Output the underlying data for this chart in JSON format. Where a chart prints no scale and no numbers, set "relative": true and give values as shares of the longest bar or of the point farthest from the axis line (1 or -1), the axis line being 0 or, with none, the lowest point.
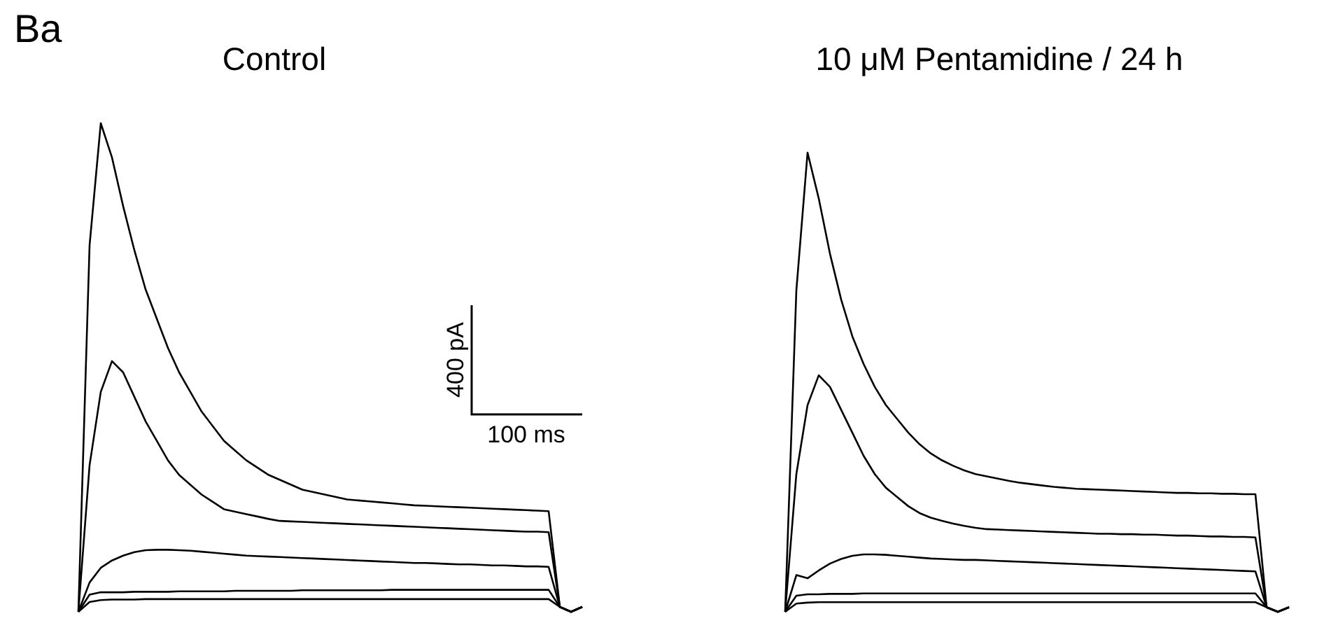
{
  "chart_data": [
    {
      "type": "line",
      "title": "Control",
      "relative": true,
      "annotations": [
        "Ba",
        "400 pA",
        "100 ms"
      ],
      "categories": [
        null,
        null,
        null,
        null,
        null,
        null,
        null,
        null,
        null,
        null,
        null,
        null,
        null,
        null,
        null,
        null,
        null,
        null,
        null,
        null,
        null,
        null,
        null,
        null,
        null,
        null,
        null,
        null,
        null,
        null,
        null,
        null,
        null,
        null,
        null,
        null,
        null,
        null,
        null,
        null,
        null,
        null,
        null,
        null,
        null,
        null
      ],
      "series": [
        {
          "color": "#000000",
          "values": [
            0,
            0.75,
            1.0,
            0.93,
            0.83,
            0.74,
            0.66,
            0.6,
            0.54,
            0.49,
            0.45,
            0.41,
            0.38,
            0.35,
            0.33,
            0.31,
            0.295,
            0.28,
            0.27,
            0.26,
            0.25,
            0.245,
            0.24,
            0.235,
            0.23,
            0.228,
            0.226,
            0.224,
            0.222,
            0.22,
            0.218,
            0.217,
            0.216,
            0.215,
            0.214,
            0.213,
            0.212,
            0.211,
            0.21,
            0.209,
            0.208,
            0.207,
            0.206,
            0.01,
            0,
            0.01
          ]
        },
        {
          "color": "#000000",
          "values": [
            0,
            0.3,
            0.45,
            0.513,
            0.49,
            0.44,
            0.39,
            0.35,
            0.31,
            0.28,
            0.26,
            0.24,
            0.225,
            0.21,
            0.205,
            0.2,
            0.195,
            0.19,
            0.186,
            0.185,
            0.184,
            0.183,
            0.182,
            0.181,
            0.18,
            0.179,
            0.178,
            0.177,
            0.176,
            0.175,
            0.174,
            0.173,
            0.172,
            0.171,
            0.17,
            0.169,
            0.168,
            0.167,
            0.166,
            0.165,
            0.164,
            0.164,
            0.163,
            0.01,
            0,
            0.01
          ]
        },
        {
          "color": "#000000",
          "values": [
            0,
            0.06,
            0.09,
            0.105,
            0.115,
            0.122,
            0.126,
            0.127,
            0.127,
            0.126,
            0.125,
            0.123,
            0.121,
            0.119,
            0.117,
            0.115,
            0.114,
            0.113,
            0.112,
            0.111,
            0.11,
            0.109,
            0.108,
            0.107,
            0.106,
            0.105,
            0.104,
            0.103,
            0.102,
            0.101,
            0.1,
            0.1,
            0.099,
            0.098,
            0.097,
            0.097,
            0.096,
            0.095,
            0.095,
            0.094,
            0.093,
            0.093,
            0.092,
            0.01,
            0,
            0.01
          ]
        },
        {
          "color": "#000000",
          "values": [
            0,
            0.035,
            0.04,
            0.04,
            0.04,
            0.041,
            0.041,
            0.041,
            0.041,
            0.042,
            0.042,
            0.042,
            0.042,
            0.042,
            0.043,
            0.043,
            0.043,
            0.043,
            0.043,
            0.043,
            0.044,
            0.044,
            0.044,
            0.044,
            0.044,
            0.044,
            0.044,
            0.044,
            0.045,
            0.045,
            0.045,
            0.045,
            0.045,
            0.045,
            0.045,
            0.045,
            0.045,
            0.045,
            0.045,
            0.045,
            0.045,
            0.045,
            0.045,
            0.01,
            0,
            0.01
          ]
        },
        {
          "color": "#000000",
          "values": [
            0,
            0.02,
            0.024,
            0.025,
            0.025,
            0.025,
            0.026,
            0.026,
            0.026,
            0.026,
            0.026,
            0.026,
            0.026,
            0.026,
            0.026,
            0.026,
            0.026,
            0.026,
            0.026,
            0.026,
            0.026,
            0.026,
            0.026,
            0.026,
            0.026,
            0.026,
            0.026,
            0.026,
            0.026,
            0.026,
            0.026,
            0.026,
            0.026,
            0.026,
            0.026,
            0.026,
            0.026,
            0.026,
            0.026,
            0.026,
            0.026,
            0.026,
            0.026,
            0.01,
            0,
            0.01
          ]
        }
      ]
    },
    {
      "type": "line",
      "title": "10 μM Pentamidine / 24 h",
      "relative": true,
      "categories": [
        null,
        null,
        null,
        null,
        null,
        null,
        null,
        null,
        null,
        null,
        null,
        null,
        null,
        null,
        null,
        null,
        null,
        null,
        null,
        null,
        null,
        null,
        null,
        null,
        null,
        null,
        null,
        null,
        null,
        null,
        null,
        null,
        null,
        null,
        null,
        null,
        null,
        null,
        null,
        null,
        null,
        null,
        null,
        null,
        null,
        null
      ],
      "series": [
        {
          "color": "#000000",
          "values": [
            0,
            0.7,
            1.0,
            0.9,
            0.78,
            0.68,
            0.6,
            0.54,
            0.49,
            0.45,
            0.42,
            0.39,
            0.365,
            0.345,
            0.33,
            0.318,
            0.308,
            0.3,
            0.295,
            0.29,
            0.285,
            0.281,
            0.278,
            0.275,
            0.272,
            0.27,
            0.268,
            0.267,
            0.266,
            0.265,
            0.264,
            0.263,
            0.262,
            0.261,
            0.26,
            0.259,
            0.259,
            0.258,
            0.258,
            0.257,
            0.257,
            0.256,
            0.256,
            0.01,
            0,
            0.01
          ]
        },
        {
          "color": "#000000",
          "values": [
            0,
            0.3,
            0.45,
            0.515,
            0.49,
            0.44,
            0.39,
            0.34,
            0.3,
            0.27,
            0.25,
            0.23,
            0.215,
            0.205,
            0.198,
            0.192,
            0.187,
            0.183,
            0.18,
            0.179,
            0.178,
            0.177,
            0.176,
            0.175,
            0.174,
            0.173,
            0.172,
            0.171,
            0.17,
            0.17,
            0.169,
            0.169,
            0.168,
            0.168,
            0.167,
            0.166,
            0.166,
            0.165,
            0.164,
            0.164,
            0.163,
            0.163,
            0.162,
            0.01,
            0,
            0.01
          ]
        },
        {
          "color": "#000000",
          "values": [
            0,
            0.08,
            0.073,
            0.09,
            0.105,
            0.115,
            0.122,
            0.125,
            0.125,
            0.124,
            0.122,
            0.12,
            0.118,
            0.116,
            0.115,
            0.114,
            0.113,
            0.113,
            0.112,
            0.111,
            0.11,
            0.109,
            0.108,
            0.107,
            0.106,
            0.105,
            0.104,
            0.103,
            0.102,
            0.101,
            0.1,
            0.099,
            0.098,
            0.097,
            0.096,
            0.095,
            0.094,
            0.093,
            0.092,
            0.091,
            0.09,
            0.089,
            0.088,
            0.01,
            0,
            0.01
          ]
        },
        {
          "color": "#000000",
          "values": [
            0,
            0.035,
            0.038,
            0.038,
            0.039,
            0.039,
            0.039,
            0.04,
            0.04,
            0.04,
            0.04,
            0.04,
            0.04,
            0.04,
            0.04,
            0.04,
            0.04,
            0.04,
            0.04,
            0.04,
            0.04,
            0.04,
            0.04,
            0.04,
            0.04,
            0.04,
            0.04,
            0.04,
            0.04,
            0.04,
            0.04,
            0.04,
            0.04,
            0.04,
            0.04,
            0.04,
            0.04,
            0.04,
            0.04,
            0.04,
            0.04,
            0.04,
            0.04,
            0.01,
            0,
            0.01
          ]
        },
        {
          "color": "#000000",
          "values": [
            0,
            0.018,
            0.02,
            0.021,
            0.021,
            0.021,
            0.021,
            0.021,
            0.021,
            0.021,
            0.021,
            0.021,
            0.021,
            0.021,
            0.021,
            0.021,
            0.021,
            0.021,
            0.021,
            0.021,
            0.021,
            0.021,
            0.021,
            0.021,
            0.021,
            0.021,
            0.021,
            0.021,
            0.021,
            0.021,
            0.021,
            0.021,
            0.021,
            0.021,
            0.021,
            0.021,
            0.021,
            0.021,
            0.021,
            0.021,
            0.021,
            0.021,
            0.021,
            0.01,
            0,
            0.01
          ]
        }
      ]
    }
  ]
}
